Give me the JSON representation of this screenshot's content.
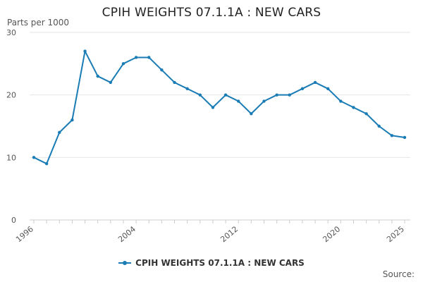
{
  "title": "CPIH WEIGHTS 07.1.1A : NEW CARS",
  "source_label": "Source:",
  "colors": {
    "series": "#1a7cb5",
    "grid": "#e6e6e6",
    "axis": "#cccccc"
  },
  "chart_data": {
    "type": "line",
    "title": "CPIH WEIGHTS 07.1.1A : NEW CARS",
    "ylabel": "Parts per 1000",
    "xlabel": "",
    "xlim": [
      1996,
      2025
    ],
    "ylim": [
      0,
      30
    ],
    "y_ticks": [
      0,
      10,
      20,
      30
    ],
    "x_tick_labels": [
      1996,
      2004,
      2012,
      2020,
      2025
    ],
    "grid": true,
    "legend_position": "bottom",
    "series": [
      {
        "name": "CPIH WEIGHTS 07.1.1A : NEW CARS",
        "x": [
          1996,
          1997,
          1998,
          1999,
          2000,
          2001,
          2002,
          2003,
          2004,
          2005,
          2006,
          2007,
          2008,
          2009,
          2010,
          2011,
          2012,
          2013,
          2014,
          2015,
          2016,
          2017,
          2018,
          2019,
          2020,
          2021,
          2022,
          2023,
          2024,
          2025
        ],
        "values": [
          10,
          9,
          14,
          16,
          27,
          23,
          22,
          25,
          26,
          26,
          24,
          22,
          21,
          20,
          18,
          20,
          19,
          17,
          19,
          20,
          20,
          21,
          22,
          21,
          19,
          18,
          17,
          15,
          13.5,
          13.2
        ]
      }
    ]
  }
}
